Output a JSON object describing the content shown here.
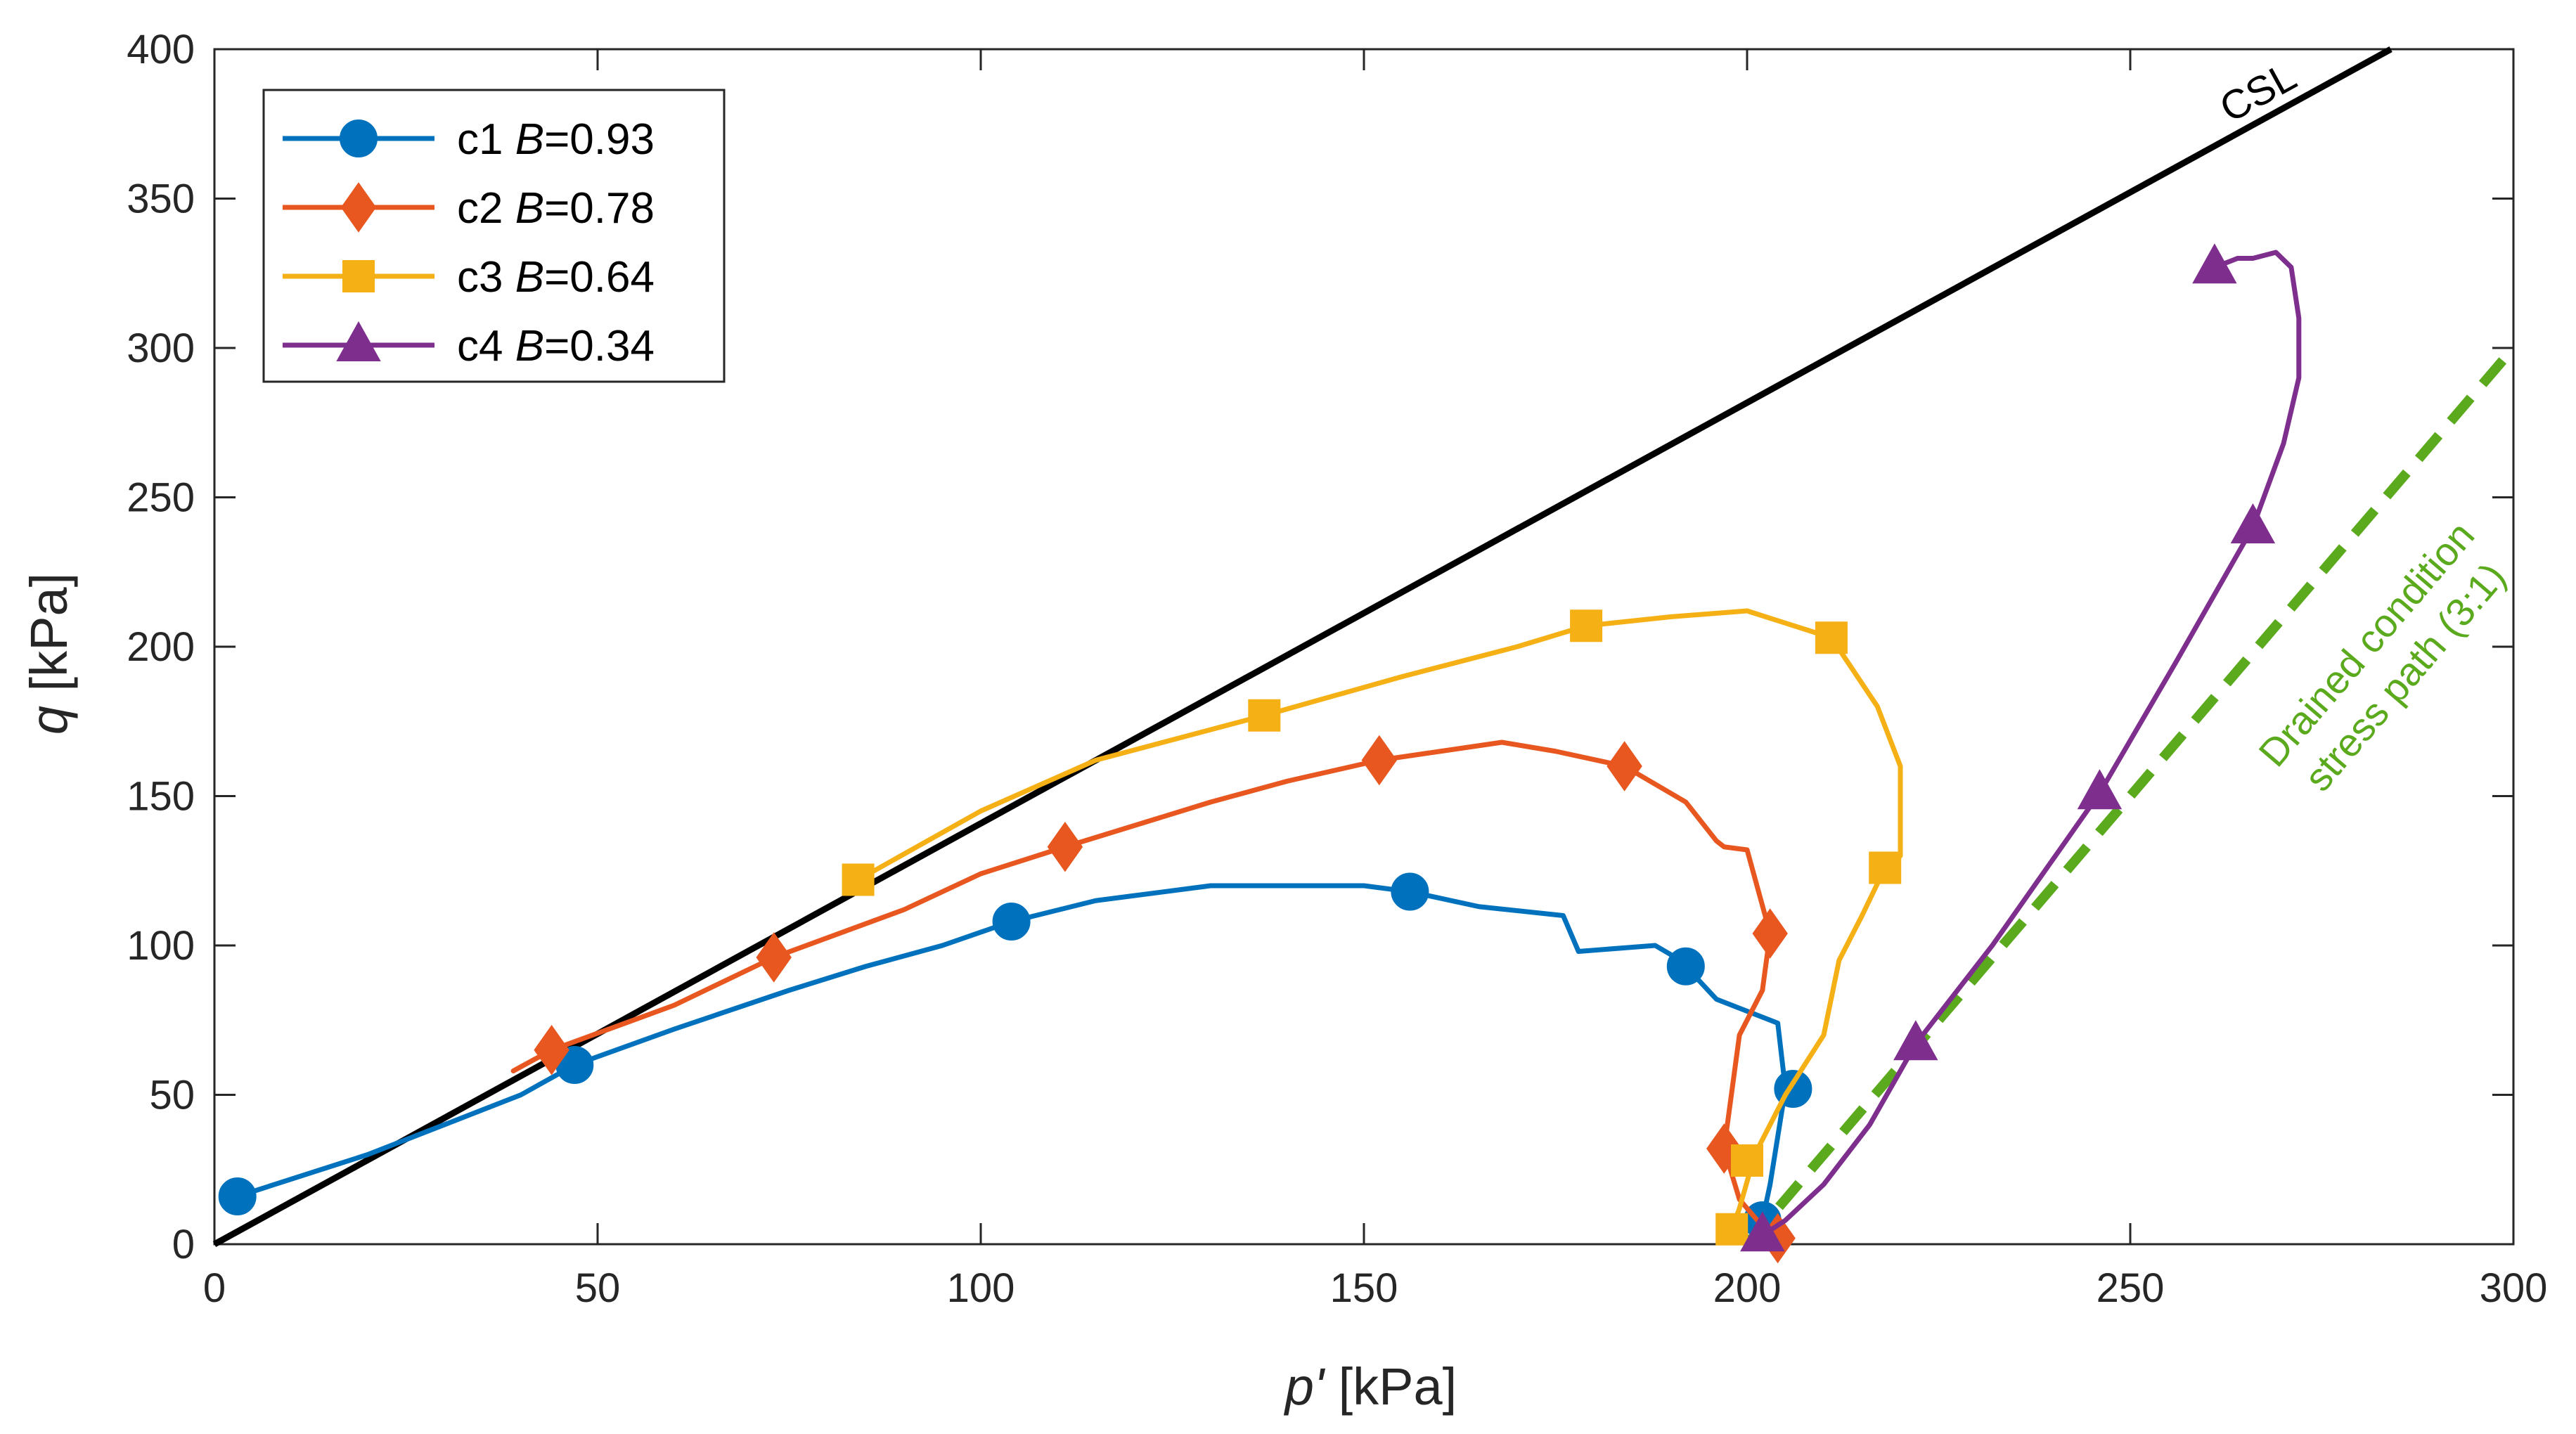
{
  "chart_data": {
    "type": "line",
    "title": "",
    "xlabel": {
      "symbol": "p'",
      "unit": " [kPa]"
    },
    "ylabel": {
      "symbol": "q",
      "unit": " [kPa]"
    },
    "xlim": [
      0,
      300
    ],
    "ylim": [
      0,
      400
    ],
    "xticks": [
      0,
      50,
      100,
      150,
      200,
      250,
      300
    ],
    "yticks": [
      0,
      50,
      100,
      150,
      200,
      250,
      300,
      350,
      400
    ],
    "grid": false,
    "legend_position": "top-left",
    "series": [
      {
        "name": "c1",
        "b_label": "B",
        "b_value": "=0.93",
        "color": "#0072BD",
        "marker": "circle",
        "x": [
          3,
          20,
          40,
          47,
          60,
          75,
          85,
          95,
          104,
          115,
          130,
          150,
          156,
          165,
          176,
          178,
          188,
          190,
          192,
          196,
          204,
          205,
          203,
          202
        ],
        "y": [
          16,
          30,
          50,
          60,
          72,
          85,
          93,
          100,
          108,
          115,
          120,
          120,
          118,
          113,
          110,
          98,
          100,
          97,
          93,
          82,
          74,
          52,
          20,
          8
        ],
        "markers_x": [
          3,
          47,
          104,
          156,
          192,
          206,
          202
        ],
        "markers_y": [
          16,
          60,
          108,
          118,
          93,
          52,
          8
        ]
      },
      {
        "name": "c2",
        "b_label": "B",
        "b_value": "=0.78",
        "color": "#E8571F",
        "marker": "diamond",
        "x": [
          39,
          44,
          60,
          73,
          90,
          100,
          111,
          130,
          140,
          152,
          160,
          168,
          175,
          184,
          192,
          196,
          197,
          200,
          203,
          202,
          199,
          197,
          199,
          202,
          204
        ],
        "y": [
          58,
          65,
          80,
          96,
          112,
          124,
          133,
          148,
          155,
          162,
          165,
          168,
          165,
          160,
          148,
          135,
          133,
          132,
          104,
          85,
          70,
          32,
          15,
          6,
          2
        ],
        "markers_x": [
          44,
          73,
          111,
          152,
          184,
          203,
          197,
          204
        ],
        "markers_y": [
          65,
          96,
          133,
          162,
          160,
          104,
          32,
          2
        ]
      },
      {
        "name": "c3",
        "b_label": "B",
        "b_value": "=0.64",
        "color": "#F5B015",
        "marker": "square",
        "x": [
          84,
          100,
          115,
          137,
          155,
          170,
          179,
          190,
          200,
          211,
          217,
          220,
          220,
          218,
          215,
          212,
          210,
          205,
          201,
          199,
          198
        ],
        "y": [
          122,
          145,
          162,
          177,
          190,
          200,
          207,
          210,
          212,
          203,
          180,
          160,
          130,
          126,
          110,
          95,
          70,
          50,
          30,
          12,
          5
        ],
        "markers_x": [
          84,
          137,
          179,
          211,
          218,
          200,
          198
        ],
        "markers_y": [
          122,
          177,
          207,
          203,
          126,
          28,
          5
        ]
      },
      {
        "name": "c4",
        "b_label": "B",
        "b_value": "=0.34",
        "color": "#7E2F8E",
        "marker": "triangle",
        "x": [
          202,
          205,
          210,
          216,
          222,
          232,
          246,
          256,
          266,
          270,
          272,
          272,
          271,
          269,
          266,
          264,
          262,
          261
        ],
        "y": [
          3,
          8,
          20,
          40,
          67,
          100,
          151,
          195,
          240,
          268,
          290,
          310,
          327,
          332,
          330,
          330,
          328,
          327
        ],
        "markers_x": [
          202,
          222,
          246,
          266,
          261
        ],
        "markers_y": [
          3,
          67,
          151,
          240,
          327
        ]
      }
    ],
    "reference_lines": {
      "csl": {
        "label": "CSL",
        "color": "#000000",
        "x": [
          0,
          284
        ],
        "y": [
          0,
          400
        ]
      },
      "drained": {
        "label_line1": "Drained condition",
        "label_line2": "stress path (3:1)",
        "color": "#5BAA1E",
        "x": [
          200,
          300
        ],
        "y": [
          0,
          300
        ]
      }
    }
  }
}
